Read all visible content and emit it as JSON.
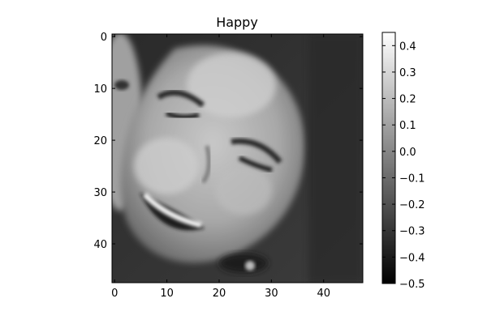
{
  "chart_data": {
    "type": "heatmap",
    "title": "Happy",
    "image_size": [
      48,
      48
    ],
    "colormap": "gray",
    "grid": false,
    "colorbar_position": "right",
    "x_ticks": [
      0,
      10,
      20,
      30,
      40
    ],
    "x_tick_labels": [
      "0",
      "10",
      "20",
      "30",
      "40"
    ],
    "y_ticks": [
      0,
      10,
      20,
      30,
      40
    ],
    "y_tick_labels": [
      "0",
      "10",
      "20",
      "30",
      "40"
    ],
    "xlim": [
      -0.5,
      47.5
    ],
    "ylim": [
      47.5,
      -0.5
    ],
    "value_range": [
      -0.5,
      0.45
    ],
    "colorbar_ticks": [
      0.4,
      0.3,
      0.2,
      0.1,
      0.0,
      -0.1,
      -0.2,
      -0.3,
      -0.4,
      -0.5
    ],
    "colorbar_tick_labels": [
      "0.4",
      "0.3",
      "0.2",
      "0.1",
      "0.0",
      "−0.1",
      "−0.2",
      "−0.3",
      "−0.4",
      "−0.5"
    ]
  }
}
